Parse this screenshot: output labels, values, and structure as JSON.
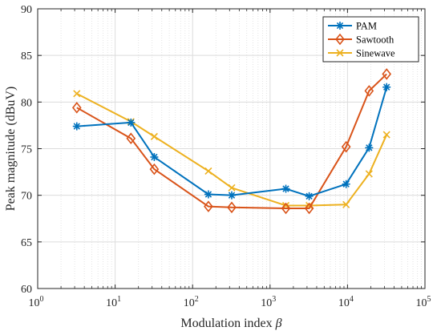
{
  "chart_data": {
    "type": "line",
    "xscale": "log",
    "xlabel": "Modulation index ",
    "xlabel_symbol": "β",
    "ylabel": "Peak magnitude (dBuV)",
    "xlim": [
      1,
      100000
    ],
    "ylim": [
      60,
      90
    ],
    "xticks": [
      {
        "value": 1,
        "base": "10",
        "exp": "0"
      },
      {
        "value": 10,
        "base": "10",
        "exp": "1"
      },
      {
        "value": 100,
        "base": "10",
        "exp": "2"
      },
      {
        "value": 1000,
        "base": "10",
        "exp": "3"
      },
      {
        "value": 10000,
        "base": "10",
        "exp": "4"
      },
      {
        "value": 100000,
        "base": "10",
        "exp": "5"
      }
    ],
    "yticks": [
      60,
      65,
      70,
      75,
      80,
      85,
      90
    ],
    "grid": true,
    "legend_position": "top-right",
    "series": [
      {
        "name": "PAM",
        "color": "#0072BD",
        "marker": "asterisk",
        "x": [
          3.2,
          16,
          32,
          160,
          320,
          1600,
          3200,
          9600,
          19000,
          32000
        ],
        "y": [
          77.4,
          77.8,
          74.1,
          70.1,
          70.0,
          70.7,
          69.9,
          71.2,
          75.1,
          81.6
        ]
      },
      {
        "name": "Sawtooth",
        "color": "#D95319",
        "marker": "diamond",
        "x": [
          3.2,
          16,
          32,
          160,
          320,
          1600,
          3200,
          9600,
          19000,
          32000
        ],
        "y": [
          79.4,
          76.1,
          72.8,
          68.8,
          68.7,
          68.6,
          68.6,
          75.2,
          81.2,
          83.0
        ]
      },
      {
        "name": "Sinewave",
        "color": "#EDB120",
        "marker": "x",
        "x": [
          3.2,
          16,
          32,
          160,
          320,
          1600,
          3200,
          9600,
          19000,
          32000
        ],
        "y": [
          80.9,
          77.9,
          76.3,
          72.6,
          70.8,
          68.9,
          68.9,
          69.0,
          72.3,
          76.5
        ]
      }
    ]
  }
}
